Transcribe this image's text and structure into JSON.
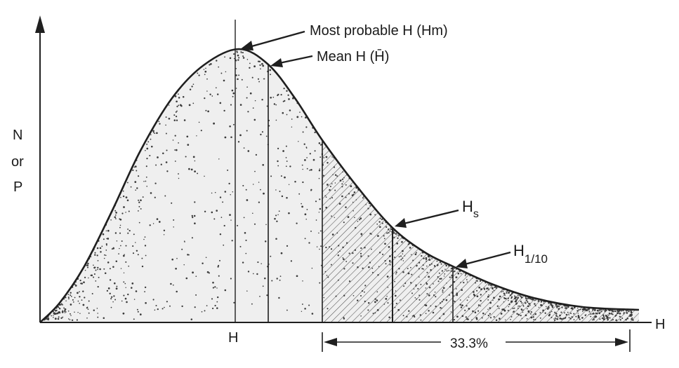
{
  "diagram": {
    "y_axis_label_lines": [
      "N",
      "or",
      "P"
    ],
    "x_axis_label": "H",
    "x_tick_label": "H",
    "annotations": {
      "most_probable": "Most probable H (Hm)",
      "mean": "Mean H (H̄)",
      "hs_main": "H",
      "hs_sub": "s",
      "h110_main": "H",
      "h110_sub": "1/10"
    },
    "range_label": "33.3%"
  }
}
